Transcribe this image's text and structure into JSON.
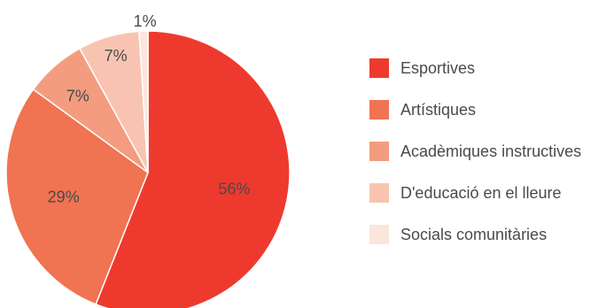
{
  "chart_data": {
    "type": "pie",
    "title": "",
    "categories": [
      "Esportives",
      "Artístiques",
      "Acadèmiques instructives",
      "D'educació en el lleure",
      "Socials comunitàries"
    ],
    "values": [
      56,
      29,
      7,
      7,
      1
    ],
    "value_labels": [
      "56%",
      "29%",
      "7%",
      "7%",
      "1%"
    ],
    "colors": [
      "#ee3a2e",
      "#f07352",
      "#f39c80",
      "#f8c4b1",
      "#fbe5dc"
    ],
    "legend_position": "right"
  }
}
